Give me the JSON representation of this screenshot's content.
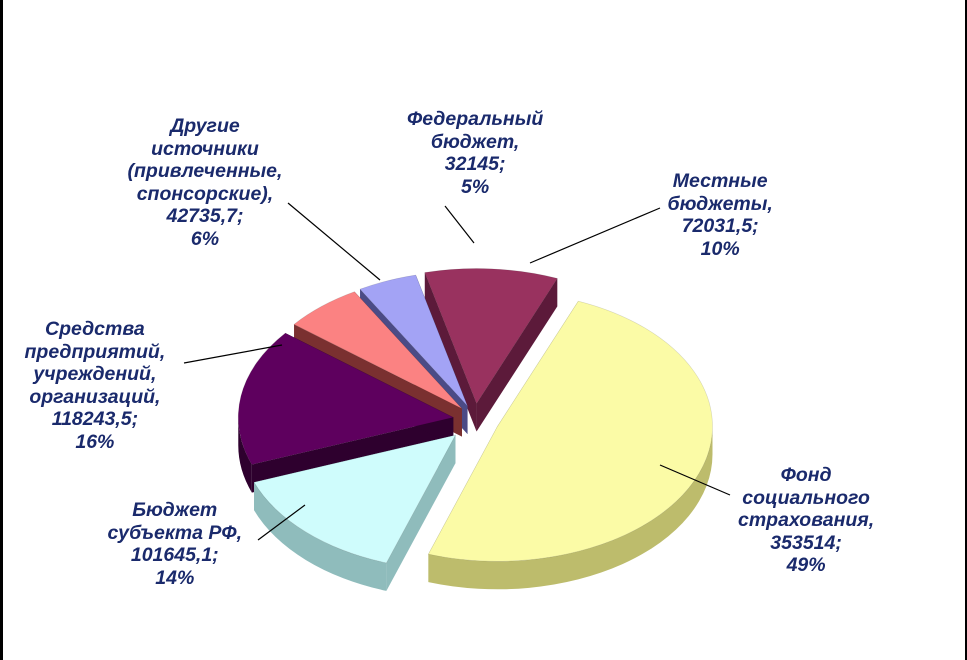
{
  "chart_data": {
    "type": "pie",
    "style": "3d-exploded",
    "title": "",
    "colors": {
      "label_text": "#1a2a6c",
      "leader_line": "#000000"
    },
    "slices": [
      {
        "lines": [
          "Федеральный",
          "бюджет,"
        ],
        "value": 32145,
        "value_text": "32145;",
        "percent_text": "5%",
        "color": "#a3a3f5",
        "side_color": "#4b4b86"
      },
      {
        "lines": [
          "Местные",
          "бюджеты,"
        ],
        "value": 72031.5,
        "value_text": "72031,5;",
        "percent_text": "10%",
        "color": "#99325f",
        "side_color": "#5c1a3a"
      },
      {
        "lines": [
          "Фонд",
          "социального",
          "страхования,"
        ],
        "value": 353514,
        "value_text": "353514;",
        "percent_text": "49%",
        "color": "#fbfba6",
        "side_color": "#bdbc6c"
      },
      {
        "lines": [
          "Бюджет",
          "субъекта РФ,"
        ],
        "value": 101645.1,
        "value_text": "101645,1;",
        "percent_text": "14%",
        "color": "#cffcfc",
        "side_color": "#8fbcbc"
      },
      {
        "lines": [
          "Средства",
          "предприятий,",
          "учреждений,",
          "организаций,"
        ],
        "value": 118243.5,
        "value_text": "118243,5;",
        "percent_text": "16%",
        "color": "#5e005e",
        "side_color": "#2e002e"
      },
      {
        "lines": [
          "Другие",
          "источники",
          "(привлеченные,",
          "спонсорские),"
        ],
        "value": 42735.7,
        "value_text": "42735,7;",
        "percent_text": "6%",
        "color": "#fb8282",
        "side_color": "#7a3030"
      }
    ]
  }
}
